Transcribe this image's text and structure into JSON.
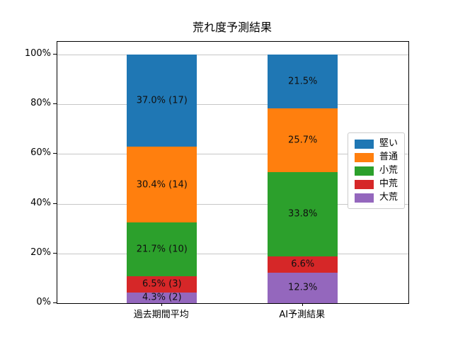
{
  "chart_data": {
    "type": "stacked_bar",
    "title": "荒れ度予測結果",
    "categories": [
      "過去期間平均",
      "AI予測結果"
    ],
    "series": [
      {
        "name": "大荒",
        "color": "#9467bd",
        "values": [
          4.3,
          12.3
        ],
        "labels": [
          "4.3% (2)",
          "12.3%"
        ]
      },
      {
        "name": "中荒",
        "color": "#d62728",
        "values": [
          6.5,
          6.6
        ],
        "labels": [
          "6.5% (3)",
          "6.6%"
        ]
      },
      {
        "name": "小荒",
        "color": "#2ca02c",
        "values": [
          21.7,
          33.8
        ],
        "labels": [
          "21.7% (10)",
          "33.8%"
        ]
      },
      {
        "name": "普通",
        "color": "#ff7f0e",
        "values": [
          30.4,
          25.7
        ],
        "labels": [
          "30.4% (14)",
          "25.7%"
        ]
      },
      {
        "name": "堅い",
        "color": "#1f77b4",
        "values": [
          37.0,
          21.5
        ],
        "labels": [
          "37.0% (17)",
          "21.5%"
        ]
      }
    ],
    "y_axis": {
      "tick_values": [
        0,
        20,
        40,
        60,
        80,
        100
      ],
      "tick_labels": [
        "0%",
        "20%",
        "40%",
        "60%",
        "80%",
        "100%"
      ],
      "max_value": 105.1,
      "unit": "%"
    },
    "grid": true,
    "legend": {
      "position": "center-right",
      "entries": [
        "堅い",
        "普通",
        "小荒",
        "中荒",
        "大荒"
      ]
    },
    "layout": {
      "bar_centers_frac": [
        0.298,
        0.699
      ],
      "bar_width_frac": 0.2
    }
  }
}
